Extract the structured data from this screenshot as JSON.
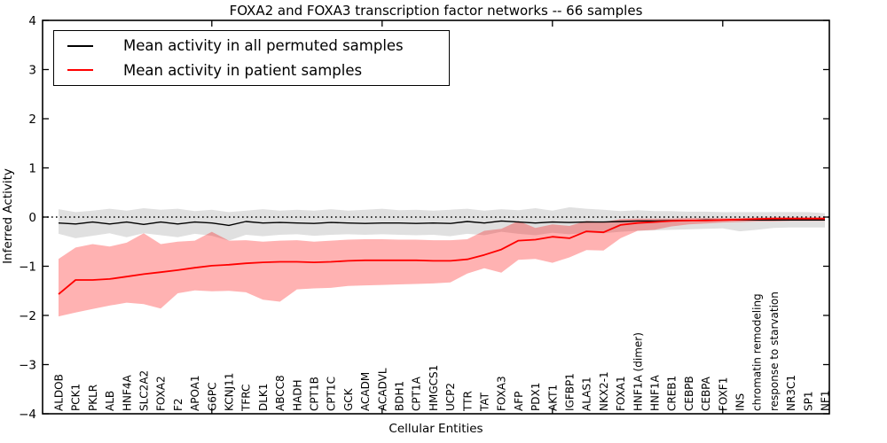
{
  "chart_data": {
    "type": "line",
    "title": "FOXA2 and FOXA3 transcription factor networks -- 66 samples",
    "xlabel": "Cellular Entities",
    "ylabel": "Inferred Activity",
    "ylim": [
      -4,
      4
    ],
    "yticks": [
      -4,
      -3,
      -2,
      -1,
      0,
      1,
      2,
      3,
      4
    ],
    "ytick_labels": [
      "−4",
      "−3",
      "−2",
      "−1",
      "0",
      "1",
      "2",
      "3",
      "4"
    ],
    "zero_line": "dotted",
    "grid": false,
    "legend_position": "upper left",
    "categories": [
      "ALDOB",
      "PCK1",
      "PKLR",
      "ALB",
      "HNF4A",
      "SLC2A2",
      "FOXA2",
      "F2",
      "APOA1",
      "G6PC",
      "KCNJ11",
      "TFRC",
      "DLK1",
      "ABCC8",
      "HADH",
      "CPT1B",
      "CPT1C",
      "GCK",
      "ACADM",
      "ACADVL",
      "BDH1",
      "CPT1A",
      "HMGCS1",
      "UCP2",
      "TTR",
      "TAT",
      "FOXA3",
      "AFP",
      "PDX1",
      "AKT1",
      "IGFBP1",
      "ALAS1",
      "NKX2-1",
      "FOXA1",
      "HNF1A (dimer)",
      "HNF1A",
      "CREB1",
      "CEBPB",
      "CEBPA",
      "FOXF1",
      "INS",
      "chromatin remodeling",
      "response to starvation",
      "NR3C1",
      "SP1",
      "NF1"
    ],
    "series": [
      {
        "name": "Mean activity in all permuted samples",
        "color": "#000000",
        "band_color": "rgba(0,0,0,0.12)",
        "values": [
          -0.12,
          -0.14,
          -0.1,
          -0.14,
          -0.1,
          -0.15,
          -0.1,
          -0.14,
          -0.1,
          -0.12,
          -0.17,
          -0.09,
          -0.12,
          -0.11,
          -0.12,
          -0.13,
          -0.11,
          -0.12,
          -0.13,
          -0.12,
          -0.12,
          -0.13,
          -0.12,
          -0.13,
          -0.09,
          -0.12,
          -0.08,
          -0.1,
          -0.12,
          -0.1,
          -0.11,
          -0.1,
          -0.1,
          -0.09,
          -0.08,
          -0.08,
          -0.07,
          -0.07,
          -0.06,
          -0.06,
          -0.06,
          -0.06,
          -0.06,
          -0.06,
          -0.06,
          -0.06
        ],
        "band_upper": [
          0.16,
          0.1,
          0.13,
          0.17,
          0.13,
          0.18,
          0.15,
          0.17,
          0.12,
          0.15,
          0.1,
          0.13,
          0.16,
          0.13,
          0.15,
          0.13,
          0.16,
          0.13,
          0.15,
          0.17,
          0.14,
          0.15,
          0.13,
          0.15,
          0.17,
          0.13,
          0.16,
          0.14,
          0.18,
          0.13,
          0.2,
          0.17,
          0.15,
          0.12,
          0.14,
          0.12,
          0.12,
          0.11,
          0.11,
          0.1,
          0.1,
          0.1,
          0.1,
          0.1,
          0.1,
          0.08
        ],
        "band_lower": [
          -0.34,
          -0.43,
          -0.38,
          -0.33,
          -0.41,
          -0.33,
          -0.37,
          -0.41,
          -0.34,
          -0.38,
          -0.48,
          -0.36,
          -0.39,
          -0.36,
          -0.35,
          -0.38,
          -0.36,
          -0.35,
          -0.36,
          -0.35,
          -0.36,
          -0.37,
          -0.36,
          -0.39,
          -0.34,
          -0.37,
          -0.3,
          -0.34,
          -0.37,
          -0.32,
          -0.35,
          -0.32,
          -0.33,
          -0.3,
          -0.28,
          -0.27,
          -0.26,
          -0.25,
          -0.24,
          -0.23,
          -0.29,
          -0.26,
          -0.22,
          -0.21,
          -0.21,
          -0.21
        ]
      },
      {
        "name": "Mean activity in patient samples",
        "color": "#ff0000",
        "band_color": "rgba(255,0,0,0.30)",
        "values": [
          -1.57,
          -1.28,
          -1.28,
          -1.26,
          -1.21,
          -1.16,
          -1.12,
          -1.08,
          -1.03,
          -0.99,
          -0.97,
          -0.94,
          -0.92,
          -0.91,
          -0.91,
          -0.92,
          -0.91,
          -0.89,
          -0.88,
          -0.88,
          -0.88,
          -0.88,
          -0.89,
          -0.89,
          -0.86,
          -0.77,
          -0.66,
          -0.48,
          -0.46,
          -0.4,
          -0.43,
          -0.29,
          -0.31,
          -0.16,
          -0.12,
          -0.1,
          -0.08,
          -0.07,
          -0.07,
          -0.06,
          -0.05,
          -0.04,
          -0.03,
          -0.03,
          -0.03,
          -0.03
        ],
        "band_upper": [
          -0.85,
          -0.62,
          -0.55,
          -0.6,
          -0.52,
          -0.33,
          -0.55,
          -0.5,
          -0.48,
          -0.3,
          -0.48,
          -0.47,
          -0.5,
          -0.48,
          -0.47,
          -0.5,
          -0.48,
          -0.46,
          -0.45,
          -0.45,
          -0.46,
          -0.46,
          -0.47,
          -0.47,
          -0.45,
          -0.28,
          -0.24,
          -0.08,
          -0.22,
          -0.15,
          -0.18,
          -0.08,
          -0.1,
          -0.04,
          -0.03,
          -0.03,
          -0.03,
          -0.02,
          -0.02,
          -0.02,
          -0.02,
          -0.01,
          -0.01,
          -0.01,
          -0.01,
          -0.01
        ],
        "band_lower": [
          -2.02,
          -1.94,
          -1.87,
          -1.8,
          -1.74,
          -1.77,
          -1.86,
          -1.55,
          -1.49,
          -1.51,
          -1.5,
          -1.53,
          -1.68,
          -1.72,
          -1.47,
          -1.45,
          -1.44,
          -1.4,
          -1.39,
          -1.38,
          -1.37,
          -1.36,
          -1.35,
          -1.33,
          -1.15,
          -1.04,
          -1.13,
          -0.87,
          -0.85,
          -0.93,
          -0.82,
          -0.67,
          -0.68,
          -0.43,
          -0.28,
          -0.26,
          -0.19,
          -0.15,
          -0.13,
          -0.11,
          -0.1,
          -0.09,
          -0.09,
          -0.08,
          -0.08,
          -0.08
        ]
      }
    ]
  }
}
